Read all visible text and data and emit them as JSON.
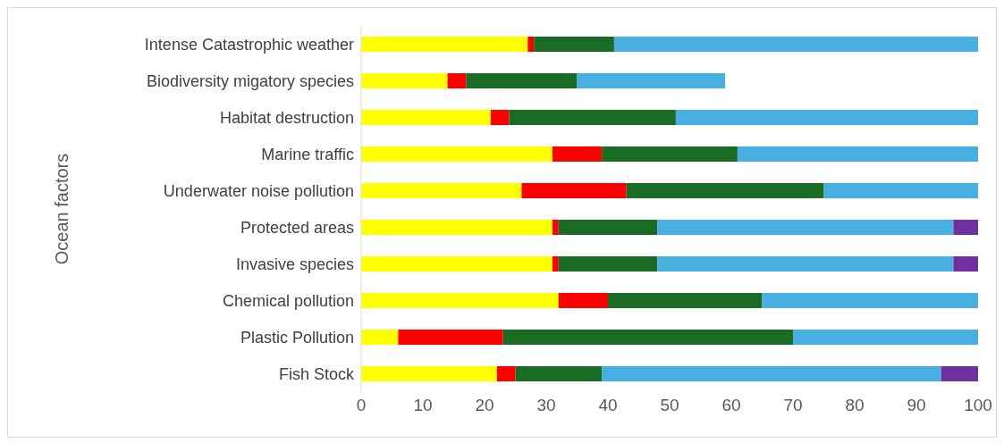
{
  "chart_data": {
    "type": "bar",
    "orientation": "horizontal",
    "stacked": true,
    "ylabel": "Ocean factors",
    "categories": [
      "Intense Catastrophic weather",
      "Biodiversity migatory species",
      "Habitat destruction",
      "Marine traffic",
      "Underwater noise pollution",
      "Protected areas",
      "Invasive species",
      "Chemical pollution",
      "Plastic Pollution",
      "Fish Stock"
    ],
    "series": [
      {
        "color": "#ffff00",
        "values": [
          27,
          14,
          21,
          31,
          26,
          31,
          31,
          32,
          6,
          22
        ]
      },
      {
        "color": "#ff0000",
        "values": [
          1,
          3,
          3,
          8,
          17,
          1,
          1,
          8,
          17,
          3
        ]
      },
      {
        "color": "#1a6b24",
        "values": [
          13,
          18,
          27,
          22,
          32,
          16,
          16,
          25,
          47,
          14
        ]
      },
      {
        "color": "#48b0e0",
        "values": [
          59,
          24,
          49,
          39,
          25,
          48,
          48,
          35,
          30,
          55
        ]
      },
      {
        "color": "#7030a0",
        "values": [
          null,
          null,
          null,
          null,
          null,
          4,
          4,
          null,
          null,
          6
        ]
      }
    ],
    "xlim": [
      0,
      100
    ],
    "xticks": [
      0,
      10,
      20,
      30,
      40,
      50,
      60,
      70,
      80,
      90,
      100
    ],
    "grid": false,
    "legend": false
  }
}
